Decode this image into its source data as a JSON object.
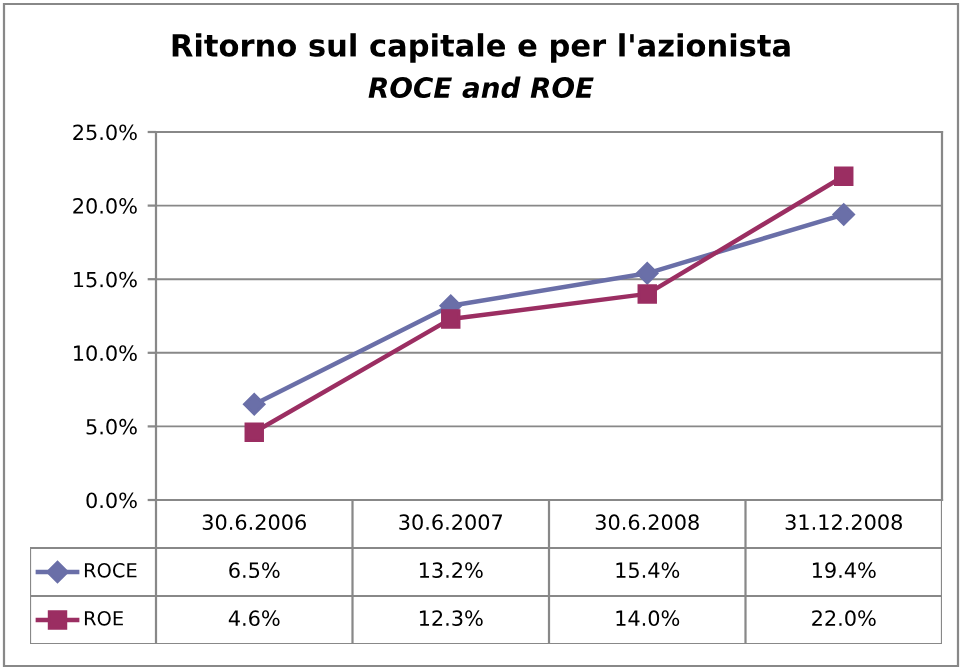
{
  "chart_data": {
    "type": "line",
    "title": "Ritorno sul capitale e per l'azionista",
    "subtitle": "ROCE and ROE",
    "categories": [
      "30.6.2006",
      "30.6.2007",
      "30.6.2008",
      "31.12.2008"
    ],
    "series": [
      {
        "name": "ROCE",
        "color": "#6a6fa8",
        "marker": "diamond",
        "values": [
          6.5,
          13.2,
          15.4,
          19.4
        ],
        "value_labels": [
          "6.5%",
          "13.2%",
          "15.4%",
          "19.4%"
        ]
      },
      {
        "name": "ROE",
        "color": "#9b2e62",
        "marker": "square",
        "values": [
          4.6,
          12.3,
          14.0,
          22.0
        ],
        "value_labels": [
          "4.6%",
          "12.3%",
          "14.0%",
          "22.0%"
        ]
      }
    ],
    "ylim": [
      0,
      25
    ],
    "yticks": [
      {
        "value": 0,
        "label": "0.0%"
      },
      {
        "value": 5,
        "label": "5.0%"
      },
      {
        "value": 10,
        "label": "10.0%"
      },
      {
        "value": 15,
        "label": "15.0%"
      },
      {
        "value": 20,
        "label": "20.0%"
      },
      {
        "value": 25,
        "label": "25.0%"
      }
    ],
    "grid": "y",
    "line_style": "solid",
    "legend": "bottom left"
  }
}
